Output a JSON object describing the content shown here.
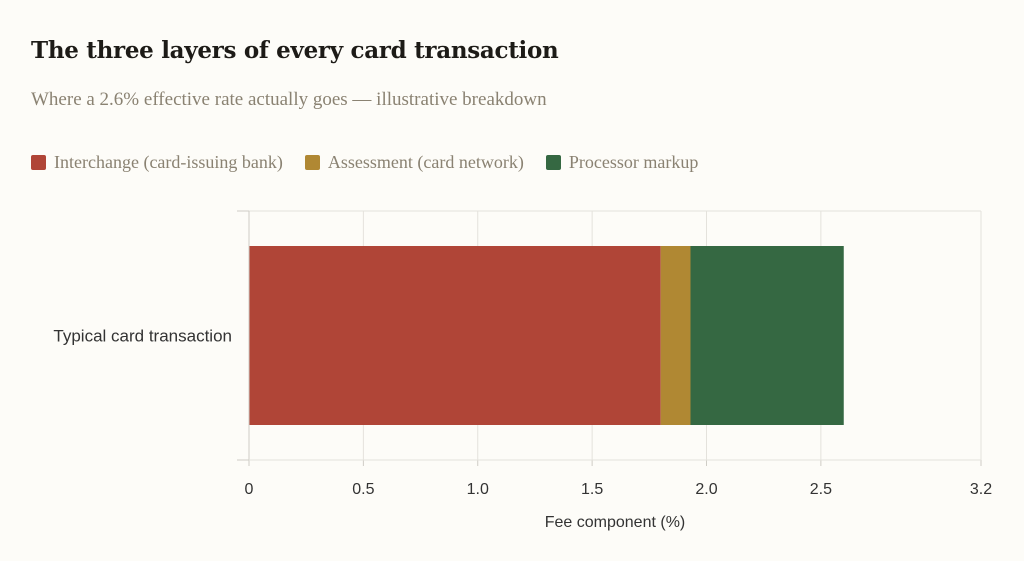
{
  "header": {
    "title": "The three layers of every card transaction",
    "subtitle": "Where a 2.6% effective rate actually goes — illustrative breakdown"
  },
  "chart_data": {
    "type": "bar",
    "orientation": "horizontal",
    "stacked": true,
    "categories": [
      "Typical card transaction"
    ],
    "series": [
      {
        "name": "Interchange (card-issuing bank)",
        "values": [
          1.8
        ],
        "color": "#b04537"
      },
      {
        "name": "Assessment (card network)",
        "values": [
          0.13
        ],
        "color": "#b08833"
      },
      {
        "name": "Processor markup",
        "values": [
          0.67
        ],
        "color": "#356842"
      }
    ],
    "xlabel": "Fee component (%)",
    "ylabel": "",
    "xlim": [
      0,
      3.2
    ],
    "xticks": [
      0,
      0.5,
      1.0,
      1.5,
      2.0,
      2.5,
      3.2
    ],
    "xtick_labels": [
      "0",
      "0.5",
      "1.0",
      "1.5",
      "2.0",
      "2.5",
      "3.2"
    ],
    "grid": true,
    "legend_position": "top-left"
  }
}
